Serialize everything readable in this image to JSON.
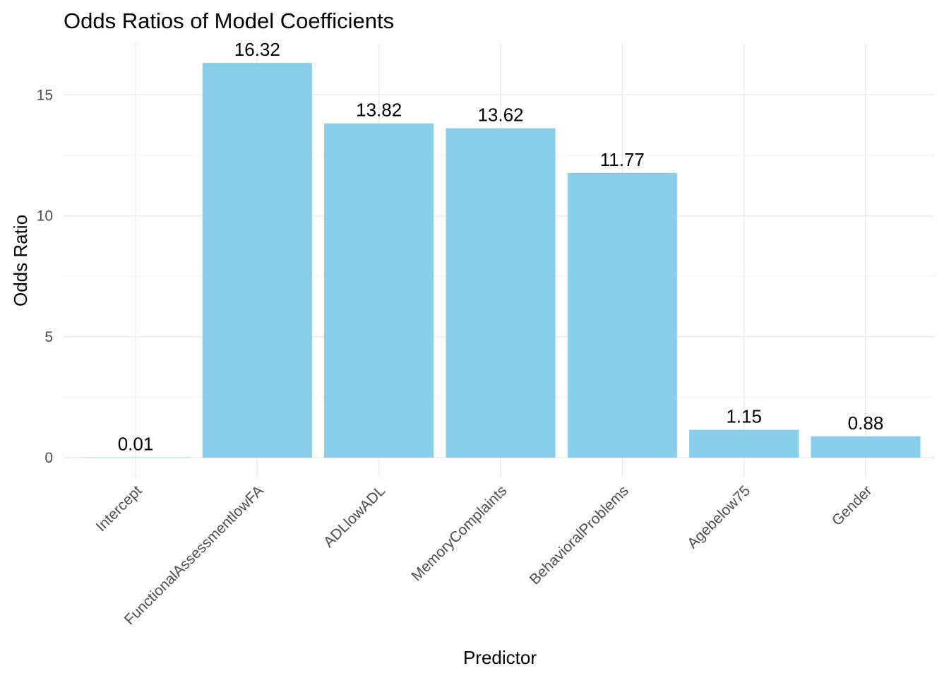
{
  "chart_data": {
    "type": "bar",
    "title": "Odds Ratios of Model Coefficients",
    "xlabel": "Predictor",
    "ylabel": "Odds Ratio",
    "categories": [
      "Intercept",
      "FunctionalAssessmentlowFA",
      "ADLlowADL",
      "MemoryComplaints",
      "BehavioralProblems",
      "Agebelow75",
      "Gender"
    ],
    "values": [
      0.01,
      16.32,
      13.82,
      13.62,
      11.77,
      1.15,
      0.88
    ],
    "value_labels": [
      "0.01",
      "16.32",
      "13.82",
      "13.62",
      "11.77",
      "1.15",
      "0.88"
    ],
    "y_ticks": [
      0,
      5,
      10,
      15
    ],
    "y_tick_labels": [
      "0",
      "5",
      "10",
      "15"
    ],
    "ylim": [
      -0.82,
      17.1
    ],
    "grid": true,
    "legend": "none",
    "bar_color": "#87CEEB",
    "label_color": "#000000"
  }
}
